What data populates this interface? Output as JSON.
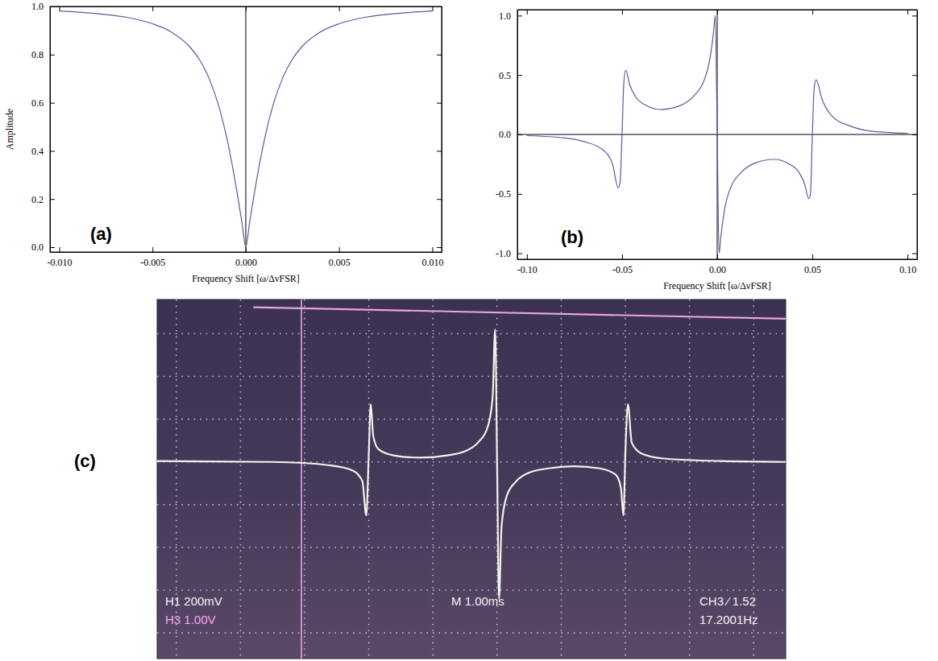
{
  "chart_data": [
    {
      "type": "line",
      "panel_label": "(a)",
      "x_label": "Frequency Shift [ω/ΔνFSR]",
      "y_label": "Amplitude",
      "x": [
        -0.01,
        -0.008,
        -0.006,
        -0.005,
        -0.004,
        -0.003,
        -0.0025,
        -0.002,
        -0.0015,
        -0.001,
        -0.0007,
        -0.0004,
        -0.0002,
        0,
        0.0002,
        0.0004,
        0.0007,
        0.001,
        0.0015,
        0.002,
        0.0025,
        0.003,
        0.004,
        0.005,
        0.006,
        0.008,
        0.01
      ],
      "series": [
        {
          "color": "#5b5a9e",
          "values": [
            0.981,
            0.97,
            0.949,
            0.928,
            0.894,
            0.832,
            0.781,
            0.707,
            0.6,
            0.447,
            0.33,
            0.196,
            0.1,
            0.0,
            0.1,
            0.196,
            0.33,
            0.447,
            0.6,
            0.707,
            0.781,
            0.832,
            0.894,
            0.928,
            0.949,
            0.97,
            0.981
          ]
        }
      ],
      "xlim": [
        -0.0105,
        0.0105
      ],
      "ylim": [
        -0.02,
        1.0
      ],
      "xticks": [
        {
          "value": -0.01,
          "label": "-0.010"
        },
        {
          "value": -0.005,
          "label": "-0.005"
        },
        {
          "value": 0,
          "label": "0.000"
        },
        {
          "value": 0.005,
          "label": "0.005"
        },
        {
          "value": 0.01,
          "label": "0.010"
        }
      ],
      "yticks": [
        {
          "value": 0,
          "label": "0.0"
        },
        0.2,
        0.4,
        0.6,
        0.8,
        {
          "value": 1,
          "label": "1.0"
        }
      ]
    },
    {
      "type": "line",
      "panel_label": "(b)",
      "x_label": "Frequency Shift [ω/ΔνFSR]",
      "x": [
        -0.1,
        -0.08,
        -0.07,
        -0.06,
        -0.055,
        -0.052,
        -0.051,
        -0.05,
        -0.049,
        -0.048,
        -0.046,
        -0.043,
        -0.038,
        -0.03,
        -0.02,
        -0.012,
        -0.007,
        -0.004,
        -0.002,
        -0.001,
        0.0,
        0.001,
        0.002,
        0.004,
        0.007,
        0.012,
        0.02,
        0.03,
        0.038,
        0.043,
        0.046,
        0.048,
        0.049,
        0.05,
        0.051,
        0.052,
        0.055,
        0.06,
        0.07,
        0.08,
        0.1
      ],
      "series": [
        {
          "color": "#5b5a9e",
          "values": [
            -0.01,
            -0.03,
            -0.06,
            -0.13,
            -0.25,
            -0.45,
            -0.4,
            0.0,
            0.45,
            0.54,
            0.42,
            0.32,
            0.25,
            0.21,
            0.24,
            0.33,
            0.45,
            0.62,
            0.85,
            1.0,
            0.0,
            -1.0,
            -0.85,
            -0.62,
            -0.45,
            -0.33,
            -0.24,
            -0.21,
            -0.25,
            -0.32,
            -0.42,
            -0.54,
            -0.5,
            0.0,
            0.4,
            0.46,
            0.3,
            0.16,
            0.07,
            0.03,
            0.01
          ]
        }
      ],
      "xlim": [
        -0.105,
        0.105
      ],
      "ylim": [
        -1.05,
        1.05
      ],
      "xticks": [
        {
          "value": -0.1,
          "label": "-0.10"
        },
        -0.05,
        {
          "value": 0,
          "label": "0.00"
        },
        0.05,
        {
          "value": 0.1,
          "label": "0.10"
        }
      ],
      "yticks": [
        {
          "value": -1,
          "label": "-1.0"
        },
        -0.5,
        {
          "value": 0,
          "label": "0.0"
        },
        0.5,
        {
          "value": 1,
          "label": "1.0"
        }
      ]
    },
    {
      "type": "line",
      "panel_label": "(c)",
      "tick_labels": false,
      "grid": true,
      "x": [
        -5.3,
        -3.5,
        -2.6,
        -2.25,
        -2.1,
        -2.04,
        -2.0,
        -1.97,
        -1.93,
        -1.85,
        -1.6,
        -1.2,
        -0.8,
        -0.5,
        -0.3,
        -0.15,
        -0.07,
        -0.03,
        0.0,
        0.03,
        0.07,
        0.15,
        0.3,
        0.5,
        0.8,
        1.2,
        1.6,
        1.85,
        1.93,
        1.97,
        2.0,
        2.04,
        2.1,
        2.25,
        2.6,
        3.5,
        4.5
      ],
      "series": [
        {
          "color": "#f4f1ea",
          "values": [
            0.02,
            0.0,
            -0.08,
            -0.2,
            -0.45,
            -1.25,
            0.2,
            1.35,
            0.6,
            0.3,
            0.15,
            0.1,
            0.15,
            0.25,
            0.45,
            0.8,
            1.5,
            3.1,
            0.0,
            -3.2,
            -1.5,
            -0.8,
            -0.45,
            -0.25,
            -0.15,
            -0.1,
            -0.15,
            -0.3,
            -0.6,
            -1.25,
            0.2,
            1.35,
            0.45,
            0.2,
            0.08,
            0.02,
            0.0
          ]
        },
        {
          "color": "#e9a3e4",
          "x": [
            -3.8,
            4.5
          ],
          "values": [
            3.62,
            3.35
          ]
        }
      ],
      "cursor_x": -3.05,
      "xlim": [
        -5.3,
        4.5
      ],
      "ylim": [
        -4.6,
        3.8
      ],
      "xticks": [
        -5,
        -4,
        -3,
        -2,
        -1,
        0,
        1,
        2,
        3,
        4
      ],
      "yticks": [
        -4,
        -3,
        -2,
        -1,
        0,
        1,
        2,
        3
      ],
      "annotations": [
        "H1 200mV",
        "M 1.00ms",
        "CH3 ⁄ 1.52",
        "H3 1.00V",
        "17.2001Hz"
      ]
    }
  ]
}
